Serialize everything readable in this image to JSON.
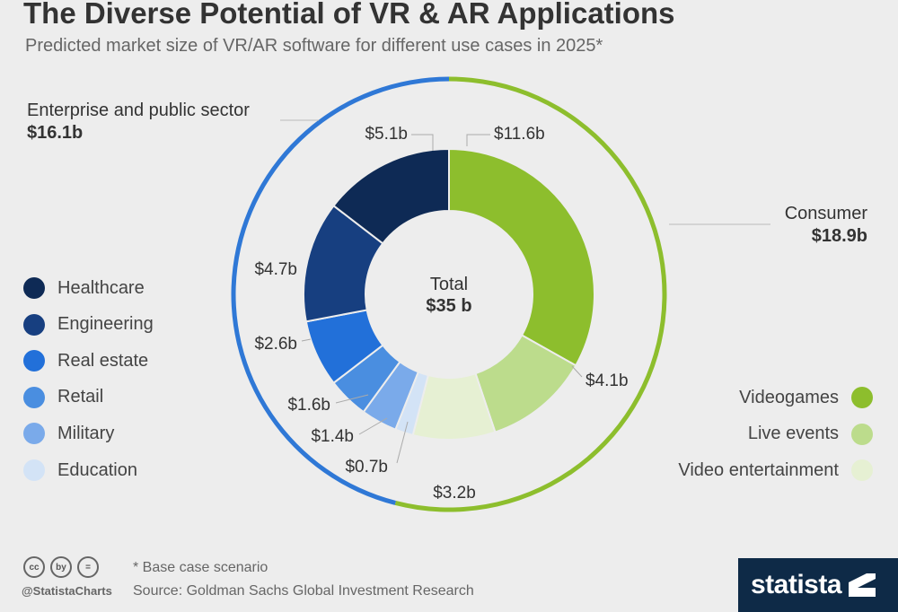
{
  "header": {
    "title": "The Diverse Potential of VR & AR Applications",
    "subtitle": "Predicted market size of VR/AR software for different use cases in 2025*"
  },
  "chart_data": {
    "type": "donut",
    "center_label": "Total",
    "center_value": "$35 b",
    "total": 35.0,
    "unit": "billion USD",
    "segments": [
      {
        "name": "Videogames",
        "value": 11.6,
        "label": "$11.6b",
        "color": "#8dbe2d",
        "group": "Consumer"
      },
      {
        "name": "Live events",
        "value": 4.1,
        "label": "$4.1b",
        "color": "#bcdc8c",
        "group": "Consumer"
      },
      {
        "name": "Video entertainment",
        "value": 3.2,
        "label": "$3.2b",
        "color": "#e6f0d3",
        "group": "Consumer"
      },
      {
        "name": "Education",
        "value": 0.7,
        "label": "$0.7b",
        "color": "#d3e3f6",
        "group": "Enterprise and public sector"
      },
      {
        "name": "Military",
        "value": 1.4,
        "label": "$1.4b",
        "color": "#7aaaea",
        "group": "Enterprise and public sector"
      },
      {
        "name": "Retail",
        "value": 1.6,
        "label": "$1.6b",
        "color": "#4a8ee0",
        "group": "Enterprise and public sector"
      },
      {
        "name": "Real estate",
        "value": 2.6,
        "label": "$2.6b",
        "color": "#2270d9",
        "group": "Enterprise and public sector"
      },
      {
        "name": "Engineering",
        "value": 4.7,
        "label": "$4.7b",
        "color": "#173f80",
        "group": "Enterprise and public sector"
      },
      {
        "name": "Healthcare",
        "value": 5.1,
        "label": "$5.1b",
        "color": "#0e2a55",
        "group": "Enterprise and public sector"
      }
    ],
    "groups": [
      {
        "name": "Consumer",
        "value": 18.9,
        "label": "$18.9b",
        "color": "#8dbe2d"
      },
      {
        "name": "Enterprise and public sector",
        "value": 16.1,
        "label": "$16.1b",
        "color": "#2f78d6"
      }
    ]
  },
  "legend_left": [
    "Healthcare",
    "Engineering",
    "Real estate",
    "Retail",
    "Military",
    "Education"
  ],
  "legend_right": [
    "Videogames",
    "Live events",
    "Video entertainment"
  ],
  "footer": {
    "note": "* Base case scenario",
    "source": "Source: Goldman Sachs Global Investment Research",
    "handle": "@StatistaCharts",
    "brand": "statista",
    "cc_icons": [
      "cc",
      "by",
      "="
    ]
  }
}
